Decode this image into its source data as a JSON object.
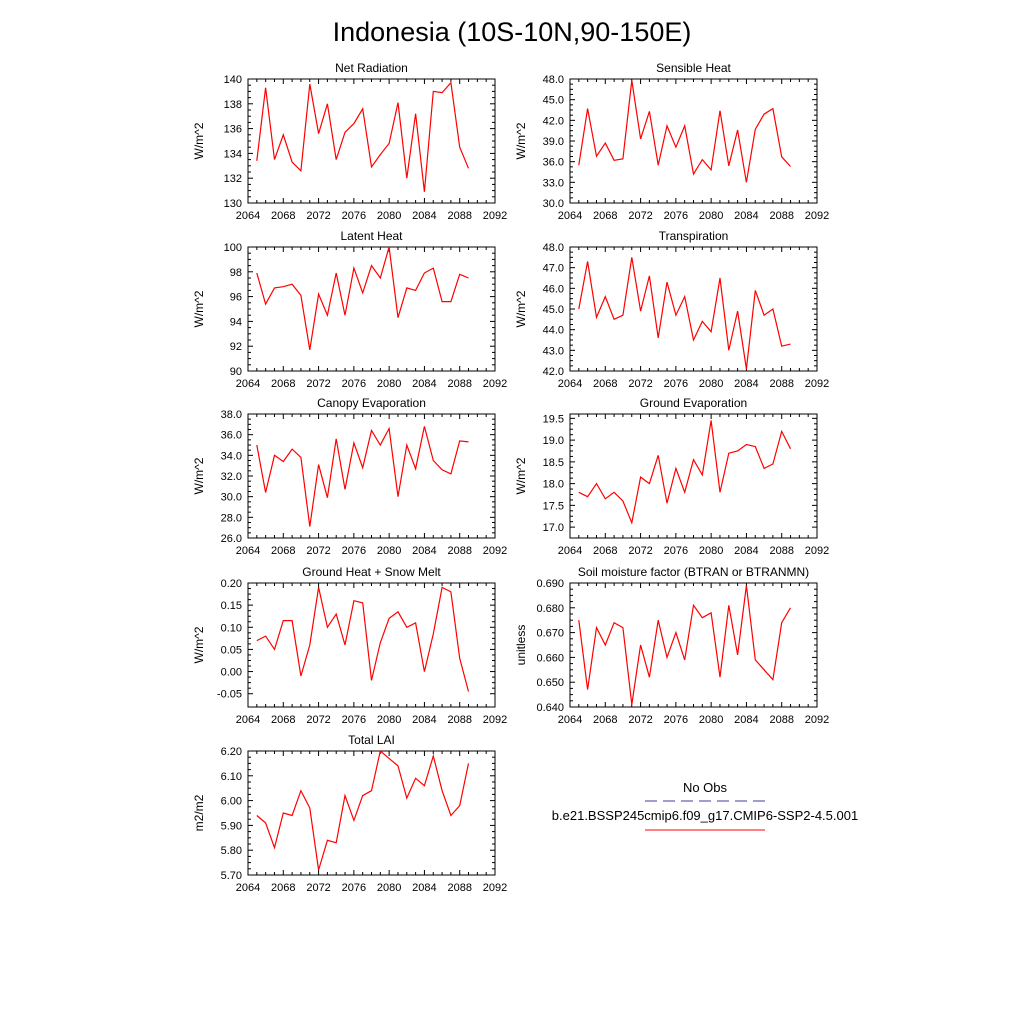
{
  "figure": {
    "title": "Indonesia (10S-10N,90-150E)"
  },
  "legend": {
    "obs_label": "No Obs",
    "obs_color": "#3f3f9f",
    "model_label": "b.e21.BSSP245cmip6.f09_g17.CMIP6-SSP2-4.5.001",
    "model_color": "#ff0000"
  },
  "chart_data": [
    {
      "type": "line",
      "title": "Net Radiation",
      "ylabel": "W/m^2",
      "xlim": [
        2064,
        2092
      ],
      "ylim": [
        130,
        140
      ],
      "xticks": [
        "2064",
        "2068",
        "2072",
        "2076",
        "2080",
        "2084",
        "2088",
        "2092"
      ],
      "yticks": [
        "130",
        "132",
        "134",
        "136",
        "138",
        "140"
      ],
      "x": [
        2065,
        2066,
        2067,
        2068,
        2069,
        2070,
        2071,
        2072,
        2073,
        2074,
        2075,
        2076,
        2077,
        2078,
        2079,
        2080,
        2081,
        2082,
        2083,
        2084,
        2085,
        2086,
        2087,
        2088,
        2089
      ],
      "series": [
        {
          "values": [
            133.4,
            139.3,
            133.5,
            135.5,
            133.3,
            132.6,
            139.6,
            135.6,
            138.0,
            133.5,
            135.7,
            136.4,
            137.6,
            132.9,
            133.9,
            134.8,
            138.1,
            132.0,
            137.2,
            130.9,
            139.0,
            138.9,
            139.7,
            134.5,
            132.8
          ]
        }
      ]
    },
    {
      "type": "line",
      "title": "Sensible Heat",
      "ylabel": "W/m^2",
      "xlim": [
        2064,
        2092
      ],
      "ylim": [
        30,
        48
      ],
      "xticks": [
        "2064",
        "2068",
        "2072",
        "2076",
        "2080",
        "2084",
        "2088",
        "2092"
      ],
      "yticks": [
        "30.0",
        "33.0",
        "36.0",
        "39.0",
        "42.0",
        "45.0",
        "48.0"
      ],
      "x": [
        2065,
        2066,
        2067,
        2068,
        2069,
        2070,
        2071,
        2072,
        2073,
        2074,
        2075,
        2076,
        2077,
        2078,
        2079,
        2080,
        2081,
        2082,
        2083,
        2084,
        2085,
        2086,
        2087,
        2088,
        2089
      ],
      "series": [
        {
          "values": [
            35.5,
            43.7,
            36.8,
            38.7,
            36.2,
            36.4,
            47.8,
            39.3,
            43.3,
            35.5,
            41.2,
            38.1,
            41.2,
            34.2,
            36.3,
            34.8,
            43.4,
            35.4,
            40.6,
            33.0,
            40.7,
            42.9,
            43.7,
            36.7,
            35.3
          ]
        }
      ]
    },
    {
      "type": "line",
      "title": "Latent Heat",
      "ylabel": "W/m^2",
      "xlim": [
        2064,
        2092
      ],
      "ylim": [
        90,
        100
      ],
      "xticks": [
        "2064",
        "2068",
        "2072",
        "2076",
        "2080",
        "2084",
        "2088",
        "2092"
      ],
      "yticks": [
        "90",
        "92",
        "94",
        "96",
        "98",
        "100"
      ],
      "x": [
        2065,
        2066,
        2067,
        2068,
        2069,
        2070,
        2071,
        2072,
        2073,
        2074,
        2075,
        2076,
        2077,
        2078,
        2079,
        2080,
        2081,
        2082,
        2083,
        2084,
        2085,
        2086,
        2087,
        2088,
        2089
      ],
      "series": [
        {
          "values": [
            97.9,
            95.4,
            96.7,
            96.8,
            97.0,
            96.1,
            91.7,
            96.2,
            94.5,
            97.9,
            94.5,
            98.3,
            96.3,
            98.5,
            97.5,
            100.0,
            94.3,
            96.7,
            96.5,
            97.9,
            98.3,
            95.6,
            95.6,
            97.8,
            97.5
          ]
        }
      ]
    },
    {
      "type": "line",
      "title": "Transpiration",
      "ylabel": "W/m^2",
      "xlim": [
        2064,
        2092
      ],
      "ylim": [
        42,
        48
      ],
      "xticks": [
        "2064",
        "2068",
        "2072",
        "2076",
        "2080",
        "2084",
        "2088",
        "2092"
      ],
      "yticks": [
        "42.0",
        "43.0",
        "44.0",
        "45.0",
        "46.0",
        "47.0",
        "48.0"
      ],
      "x": [
        2065,
        2066,
        2067,
        2068,
        2069,
        2070,
        2071,
        2072,
        2073,
        2074,
        2075,
        2076,
        2077,
        2078,
        2079,
        2080,
        2081,
        2082,
        2083,
        2084,
        2085,
        2086,
        2087,
        2088,
        2089
      ],
      "series": [
        {
          "values": [
            45.0,
            47.3,
            44.6,
            45.6,
            44.5,
            44.7,
            47.5,
            44.9,
            46.6,
            43.6,
            46.3,
            44.7,
            45.6,
            43.5,
            44.4,
            43.9,
            46.5,
            43.0,
            44.9,
            42.1,
            45.9,
            44.7,
            45.0,
            43.2,
            43.3
          ]
        }
      ]
    },
    {
      "type": "line",
      "title": "Canopy Evaporation",
      "ylabel": "W/m^2",
      "xlim": [
        2064,
        2092
      ],
      "ylim": [
        26,
        38
      ],
      "xticks": [
        "2064",
        "2068",
        "2072",
        "2076",
        "2080",
        "2084",
        "2088",
        "2092"
      ],
      "yticks": [
        "26.0",
        "28.0",
        "30.0",
        "32.0",
        "34.0",
        "36.0",
        "38.0"
      ],
      "x": [
        2065,
        2066,
        2067,
        2068,
        2069,
        2070,
        2071,
        2072,
        2073,
        2074,
        2075,
        2076,
        2077,
        2078,
        2079,
        2080,
        2081,
        2082,
        2083,
        2084,
        2085,
        2086,
        2087,
        2088,
        2089
      ],
      "series": [
        {
          "values": [
            35.0,
            30.4,
            34.0,
            33.4,
            34.6,
            33.8,
            27.1,
            33.1,
            29.9,
            35.6,
            30.7,
            35.2,
            32.8,
            36.4,
            35.0,
            36.6,
            30.0,
            35.0,
            32.7,
            36.8,
            33.5,
            32.6,
            32.2,
            35.4,
            35.3
          ]
        }
      ]
    },
    {
      "type": "line",
      "title": "Ground Evaporation",
      "ylabel": "W/m^2",
      "xlim": [
        2064,
        2092
      ],
      "ylim": [
        16.75,
        19.6
      ],
      "xticks": [
        "2064",
        "2068",
        "2072",
        "2076",
        "2080",
        "2084",
        "2088",
        "2092"
      ],
      "yticks": [
        "17.0",
        "17.5",
        "18.0",
        "18.5",
        "19.0",
        "19.5"
      ],
      "x": [
        2065,
        2066,
        2067,
        2068,
        2069,
        2070,
        2071,
        2072,
        2073,
        2074,
        2075,
        2076,
        2077,
        2078,
        2079,
        2080,
        2081,
        2082,
        2083,
        2084,
        2085,
        2086,
        2087,
        2088,
        2089
      ],
      "series": [
        {
          "values": [
            17.8,
            17.7,
            18.0,
            17.65,
            17.8,
            17.6,
            17.1,
            18.15,
            18.0,
            18.65,
            17.55,
            18.35,
            17.8,
            18.55,
            18.2,
            19.45,
            17.8,
            18.7,
            18.75,
            18.9,
            18.85,
            18.35,
            18.45,
            19.2,
            18.8
          ]
        }
      ]
    },
    {
      "type": "line",
      "title": "Ground Heat + Snow Melt",
      "ylabel": "W/m^2",
      "xlim": [
        2064,
        2092
      ],
      "ylim": [
        -0.08,
        0.2
      ],
      "xticks": [
        "2064",
        "2068",
        "2072",
        "2076",
        "2080",
        "2084",
        "2088",
        "2092"
      ],
      "yticks": [
        "-0.05",
        "0.00",
        "0.05",
        "0.10",
        "0.15",
        "0.20"
      ],
      "x": [
        2065,
        2066,
        2067,
        2068,
        2069,
        2070,
        2071,
        2072,
        2073,
        2074,
        2075,
        2076,
        2077,
        2078,
        2079,
        2080,
        2081,
        2082,
        2083,
        2084,
        2085,
        2086,
        2087,
        2088,
        2089
      ],
      "series": [
        {
          "values": [
            0.07,
            0.08,
            0.05,
            0.115,
            0.115,
            -0.01,
            0.06,
            0.19,
            0.1,
            0.13,
            0.06,
            0.16,
            0.155,
            -0.02,
            0.065,
            0.12,
            0.135,
            0.1,
            0.11,
            0.0,
            0.085,
            0.19,
            0.18,
            0.03,
            -0.045
          ]
        }
      ]
    },
    {
      "type": "line",
      "title": "Soil moisture factor (BTRAN or BTRANMN)",
      "ylabel": "unitless",
      "xlim": [
        2064,
        2092
      ],
      "ylim": [
        0.64,
        0.69
      ],
      "xticks": [
        "2064",
        "2068",
        "2072",
        "2076",
        "2080",
        "2084",
        "2088",
        "2092"
      ],
      "yticks": [
        "0.640",
        "0.650",
        "0.660",
        "0.670",
        "0.680",
        "0.690"
      ],
      "x": [
        2065,
        2066,
        2067,
        2068,
        2069,
        2070,
        2071,
        2072,
        2073,
        2074,
        2075,
        2076,
        2077,
        2078,
        2079,
        2080,
        2081,
        2082,
        2083,
        2084,
        2085,
        2086,
        2087,
        2088,
        2089
      ],
      "series": [
        {
          "values": [
            0.675,
            0.647,
            0.672,
            0.665,
            0.674,
            0.672,
            0.641,
            0.665,
            0.652,
            0.675,
            0.66,
            0.67,
            0.659,
            0.681,
            0.676,
            0.678,
            0.652,
            0.681,
            0.661,
            0.689,
            0.659,
            0.655,
            0.651,
            0.674,
            0.68
          ]
        }
      ]
    },
    {
      "type": "line",
      "title": "Total LAI",
      "ylabel": "m2/m2",
      "xlim": [
        2064,
        2092
      ],
      "ylim": [
        5.7,
        6.2
      ],
      "xticks": [
        "2064",
        "2068",
        "2072",
        "2076",
        "2080",
        "2084",
        "2088",
        "2092"
      ],
      "yticks": [
        "5.70",
        "5.80",
        "5.90",
        "6.00",
        "6.10",
        "6.20"
      ],
      "x": [
        2065,
        2066,
        2067,
        2068,
        2069,
        2070,
        2071,
        2072,
        2073,
        2074,
        2075,
        2076,
        2077,
        2078,
        2079,
        2080,
        2081,
        2082,
        2083,
        2084,
        2085,
        2086,
        2087,
        2088,
        2089
      ],
      "series": [
        {
          "values": [
            5.94,
            5.91,
            5.81,
            5.95,
            5.94,
            6.04,
            5.97,
            5.72,
            5.84,
            5.83,
            6.02,
            5.92,
            6.02,
            6.04,
            6.2,
            6.17,
            6.14,
            6.01,
            6.09,
            6.06,
            6.18,
            6.04,
            5.94,
            5.98,
            6.15
          ]
        }
      ]
    }
  ]
}
